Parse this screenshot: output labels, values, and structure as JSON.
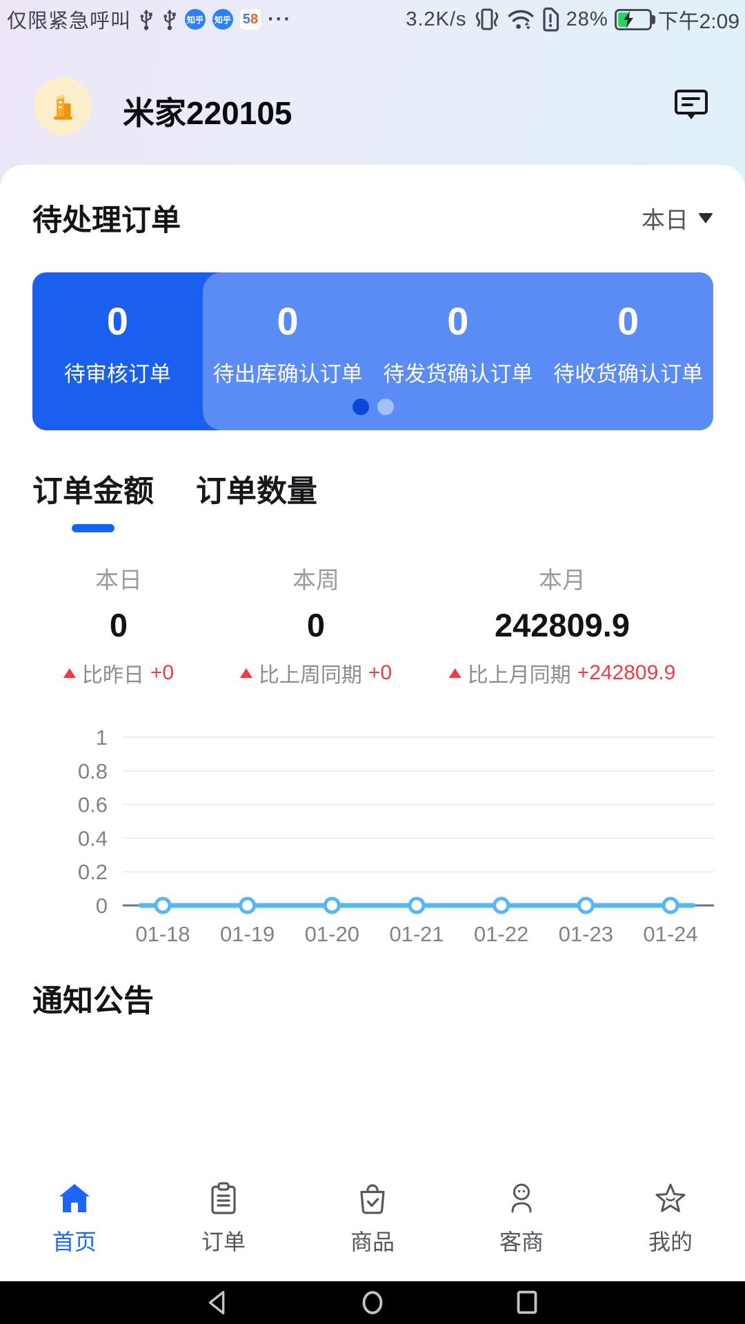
{
  "colors": {
    "accent_blue": "#1a66ff",
    "banner_blue": "#1a5ff0",
    "banner_light": "#5b8cf5",
    "active_dot": "#0a46d8",
    "line_blue": "#57b7f5",
    "alert_red": "#f03b40",
    "battery_green": "#2bd364"
  },
  "status_bar": {
    "carrier": "仅限紧急呼叫",
    "zhihu": "知乎",
    "badge_58": {
      "d5": "5",
      "d8": "8"
    },
    "more": "···",
    "net_speed": "3.2K/s",
    "battery_percent": "28%",
    "time": "下午2:09"
  },
  "header": {
    "title": "米家220105"
  },
  "pending": {
    "title": "待处理订单",
    "range_label": "本日",
    "items": [
      {
        "value": "0",
        "label": "待审核订单"
      },
      {
        "value": "0",
        "label": "待出库确认订单"
      },
      {
        "value": "0",
        "label": "待发货确认订单"
      },
      {
        "value": "0",
        "label": "待收货确认订单"
      }
    ]
  },
  "tabs": {
    "items": [
      {
        "label": "订单金额",
        "active": true
      },
      {
        "label": "订单数量",
        "active": false
      }
    ]
  },
  "stats": {
    "items": [
      {
        "period": "本日",
        "value": "0",
        "compare_label": "比昨日",
        "compare_value": "+0"
      },
      {
        "period": "本周",
        "value": "0",
        "compare_label": "比上周同期",
        "compare_value": "+0"
      },
      {
        "period": "本月",
        "value": "242809.9",
        "compare_label": "比上月同期",
        "compare_value": "+242809.9"
      }
    ]
  },
  "chart_data": {
    "type": "line",
    "x": [
      "01-18",
      "01-19",
      "01-20",
      "01-21",
      "01-22",
      "01-23",
      "01-24"
    ],
    "series": [
      {
        "name": "订单金额",
        "values": [
          0,
          0,
          0,
          0,
          0,
          0,
          0
        ]
      }
    ],
    "ylim": [
      0,
      1
    ],
    "yticks": [
      0,
      0.2,
      0.4,
      0.6,
      0.8,
      1
    ],
    "grid": true,
    "legend": "none",
    "line_color": "#57b7f5",
    "marker": "circle-open"
  },
  "notice": {
    "title": "通知公告"
  },
  "tabbar": {
    "items": [
      {
        "label": "首页",
        "active": true
      },
      {
        "label": "订单",
        "active": false
      },
      {
        "label": "商品",
        "active": false
      },
      {
        "label": "客商",
        "active": false
      },
      {
        "label": "我的",
        "active": false
      }
    ]
  }
}
